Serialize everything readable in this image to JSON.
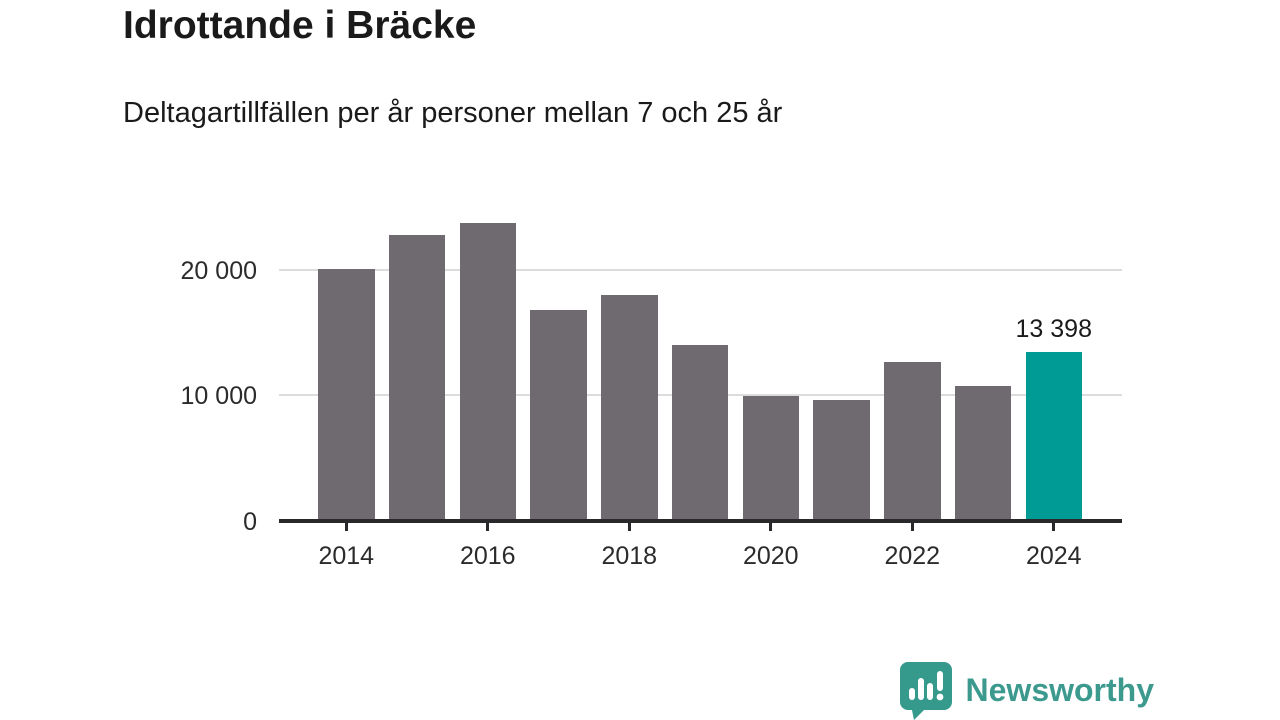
{
  "header": {
    "title": "Idrottande i Bräcke",
    "subtitle": "Deltagartillfällen per år personer mellan 7 och 25 år"
  },
  "chart_data": {
    "type": "bar",
    "title": "Idrottande i Bräcke",
    "subtitle": "Deltagartillfällen per år personer mellan 7 och 25 år",
    "x": [
      2014,
      2015,
      2016,
      2017,
      2018,
      2019,
      2020,
      2021,
      2022,
      2023,
      2024
    ],
    "values": [
      20100,
      22800,
      23800,
      16800,
      18000,
      14000,
      9900,
      9600,
      12600,
      10700,
      13398
    ],
    "highlight_index": 10,
    "annotation": {
      "index": 10,
      "text": "13 398"
    },
    "y_ticks": [
      {
        "value": 0,
        "label": "0"
      },
      {
        "value": 10000,
        "label": "10 000"
      },
      {
        "value": 20000,
        "label": "20 000"
      }
    ],
    "x_ticks": [
      {
        "index": 0,
        "label": "2014"
      },
      {
        "index": 2,
        "label": "2016"
      },
      {
        "index": 4,
        "label": "2018"
      },
      {
        "index": 6,
        "label": "2020"
      },
      {
        "index": 8,
        "label": "2022"
      },
      {
        "index": 10,
        "label": "2024"
      }
    ],
    "ylim": [
      0,
      25000
    ],
    "grid": true,
    "legend_position": "none",
    "bar_color": "#6e6a70",
    "highlight_color": "#009b94",
    "gridline_color": "#dcdcdc",
    "axis_color": "#29292b"
  },
  "footer": {
    "brand": "Newsworthy",
    "brand_color": "#3b998e"
  }
}
